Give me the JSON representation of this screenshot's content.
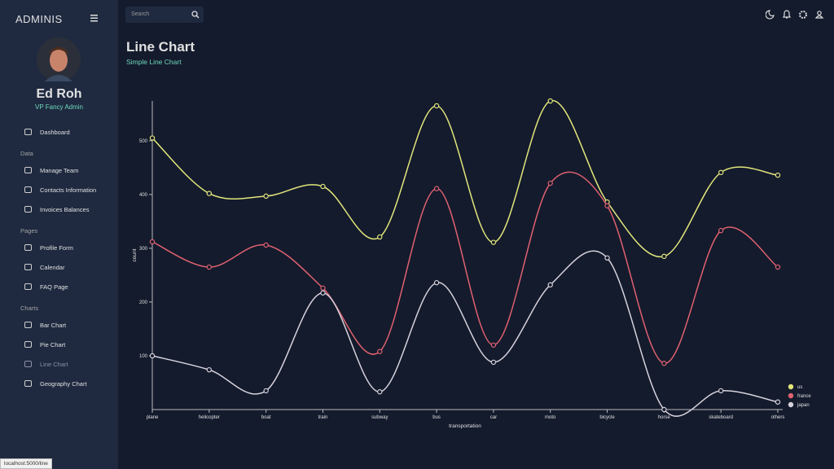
{
  "sidebar": {
    "brand": "ADMINIS",
    "user": {
      "name": "Ed Roh",
      "role": "VP Fancy Admin"
    },
    "dashboard": "Dashboard",
    "sections": [
      {
        "heading": "Data",
        "items": [
          "Manage Team",
          "Contacts Information",
          "Invoices Balances"
        ]
      },
      {
        "heading": "Pages",
        "items": [
          "Profile Form",
          "Calendar",
          "FAQ Page"
        ]
      },
      {
        "heading": "Charts",
        "items": [
          "Bar Chart",
          "Pie Chart",
          "Line Chart",
          "Geography Chart"
        ]
      }
    ]
  },
  "topbar": {
    "search_placeholder": "Search"
  },
  "header": {
    "title": "Line Chart",
    "subtitle": "Simple Line Chart"
  },
  "status_bar": "localhost:5000/line",
  "chart_data": {
    "type": "line",
    "x_label": "transportation",
    "y_label": "count",
    "categories": [
      "plane",
      "helicopter",
      "boat",
      "train",
      "subway",
      "bus",
      "car",
      "moto",
      "bicycle",
      "horse",
      "skateboard",
      "others"
    ],
    "series": [
      {
        "name": "us",
        "color": "#e2e67a",
        "values": [
          505,
          402,
          397,
          415,
          321,
          565,
          311,
          574,
          386,
          285,
          441,
          436
        ]
      },
      {
        "name": "france",
        "color": "#e0616f",
        "values": [
          312,
          265,
          306,
          226,
          108,
          411,
          120,
          421,
          379,
          86,
          333,
          265
        ]
      },
      {
        "name": "japan",
        "color": "#d6d2dc",
        "values": [
          100,
          74,
          35,
          217,
          33,
          236,
          88,
          232,
          282,
          0,
          35,
          14
        ]
      }
    ],
    "ylim": [
      0,
      574
    ],
    "yticks": [
      100,
      200,
      300,
      400,
      500
    ],
    "legend": "bottom-right"
  }
}
